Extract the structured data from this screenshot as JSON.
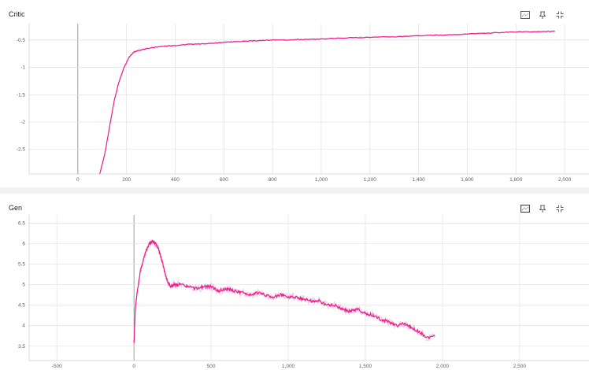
{
  "cards": [
    {
      "id": "critic",
      "title": "Critic",
      "icons": [
        "fit-domain-icon",
        "pin-icon",
        "fullscreen-icon"
      ],
      "chart_data": {
        "type": "line",
        "title": "Critic",
        "xlabel": "",
        "ylabel": "",
        "xlim": [
          -200,
          2100
        ],
        "ylim": [
          -2.95,
          -0.2
        ],
        "x_ticks": [
          0,
          200,
          400,
          600,
          800,
          1000,
          1200,
          1400,
          1600,
          1800,
          2000
        ],
        "x_tick_labels": [
          "0",
          "200",
          "400",
          "600",
          "800",
          "1,000",
          "1,200",
          "1,400",
          "1,600",
          "1,800",
          "2,000"
        ],
        "y_ticks": [
          -0.5,
          -1,
          -1.5,
          -2,
          -2.5
        ],
        "y_tick_labels": [
          "-0.5",
          "-1",
          "-1.5",
          "-2",
          "-2.5"
        ],
        "grid": true,
        "color": "#e91e8c",
        "series": [
          {
            "x": [
              90,
              110,
              130,
              150,
              170,
              190,
              210,
              230,
              250,
              280,
              320,
              360,
              400,
              450,
              500,
              550,
              600,
              650,
              700,
              750,
              800,
              850,
              900,
              950,
              1000,
              1100,
              1200,
              1300,
              1400,
              1500,
              1600,
              1700,
              1800,
              1900,
              1960
            ],
            "y": [
              -2.95,
              -2.6,
              -2.1,
              -1.6,
              -1.25,
              -1.0,
              -0.82,
              -0.72,
              -0.69,
              -0.66,
              -0.63,
              -0.61,
              -0.6,
              -0.58,
              -0.57,
              -0.56,
              -0.54,
              -0.53,
              -0.52,
              -0.51,
              -0.5,
              -0.5,
              -0.49,
              -0.49,
              -0.48,
              -0.46,
              -0.45,
              -0.44,
              -0.42,
              -0.41,
              -0.39,
              -0.37,
              -0.35,
              -0.35,
              -0.34
            ]
          }
        ]
      }
    },
    {
      "id": "gen",
      "title": "Gen",
      "icons": [
        "fit-domain-icon",
        "pin-icon",
        "fullscreen-icon"
      ],
      "chart_data": {
        "type": "line",
        "title": "Gen",
        "xlabel": "",
        "ylabel": "",
        "xlim": [
          -680,
          2950
        ],
        "ylim": [
          3.15,
          6.7
        ],
        "x_ticks": [
          -500,
          0,
          500,
          1000,
          1500,
          2000,
          2500
        ],
        "x_tick_labels": [
          "-500",
          "0",
          "500",
          "1,000",
          "1,500",
          "2,000",
          "2,500"
        ],
        "y_ticks": [
          6.5,
          6,
          5.5,
          5,
          4.5,
          4,
          3.5
        ],
        "y_tick_labels": [
          "6.5",
          "6",
          "5.5",
          "5",
          "4.5",
          "4",
          "3.5"
        ],
        "grid": true,
        "color": "#e91e8c",
        "series": [
          {
            "x": [
              0,
              8,
              20,
              40,
              60,
              80,
              100,
              120,
              140,
              160,
              180,
              200,
              220,
              240,
              260,
              300,
              350,
              400,
              450,
              500,
              550,
              600,
              650,
              700,
              750,
              800,
              850,
              900,
              950,
              1000,
              1050,
              1100,
              1150,
              1200,
              1250,
              1300,
              1350,
              1400,
              1450,
              1500,
              1550,
              1600,
              1650,
              1700,
              1750,
              1800,
              1850,
              1900,
              1950
            ],
            "y": [
              3.55,
              4.4,
              4.8,
              5.3,
              5.6,
              5.85,
              6.0,
              6.05,
              6.0,
              5.85,
              5.6,
              5.3,
              5.05,
              4.95,
              5.0,
              5.0,
              4.95,
              4.9,
              4.95,
              4.95,
              4.85,
              4.9,
              4.85,
              4.8,
              4.75,
              4.8,
              4.75,
              4.7,
              4.75,
              4.7,
              4.7,
              4.65,
              4.6,
              4.6,
              4.5,
              4.5,
              4.4,
              4.35,
              4.4,
              4.3,
              4.25,
              4.15,
              4.1,
              4.0,
              4.05,
              3.95,
              3.85,
              3.7,
              3.75
            ]
          }
        ]
      }
    }
  ]
}
